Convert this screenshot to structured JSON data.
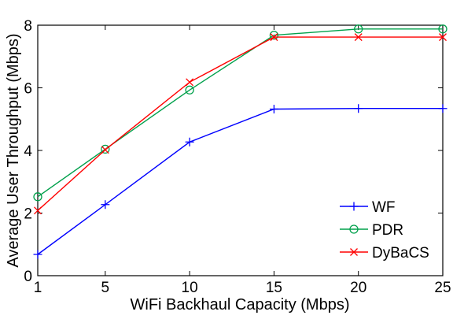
{
  "chart_data": {
    "type": "line",
    "title": "",
    "xlabel": "WiFi Backhaul Capacity (Mbps)",
    "ylabel": "Average User Throughput (Mbps)",
    "xlim": [
      1,
      25
    ],
    "ylim": [
      0,
      8
    ],
    "x_ticks": [
      1,
      5,
      10,
      15,
      20,
      25
    ],
    "y_ticks": [
      0,
      2,
      4,
      6,
      8
    ],
    "grid": false,
    "legend_position": "bottom-right",
    "x": [
      1,
      5,
      10,
      15,
      20,
      25
    ],
    "series": [
      {
        "name": "WF",
        "color": "#0000ff",
        "marker": "plus",
        "values": [
          0.68,
          2.27,
          4.27,
          5.32,
          5.34,
          5.34
        ]
      },
      {
        "name": "PDR",
        "color": "#00a04b",
        "marker": "circle",
        "values": [
          2.52,
          4.04,
          5.93,
          7.68,
          7.88,
          7.88
        ]
      },
      {
        "name": "DyBaCS",
        "color": "#ff0000",
        "marker": "x",
        "values": [
          2.08,
          4.02,
          6.18,
          7.62,
          7.62,
          7.62
        ]
      }
    ]
  }
}
